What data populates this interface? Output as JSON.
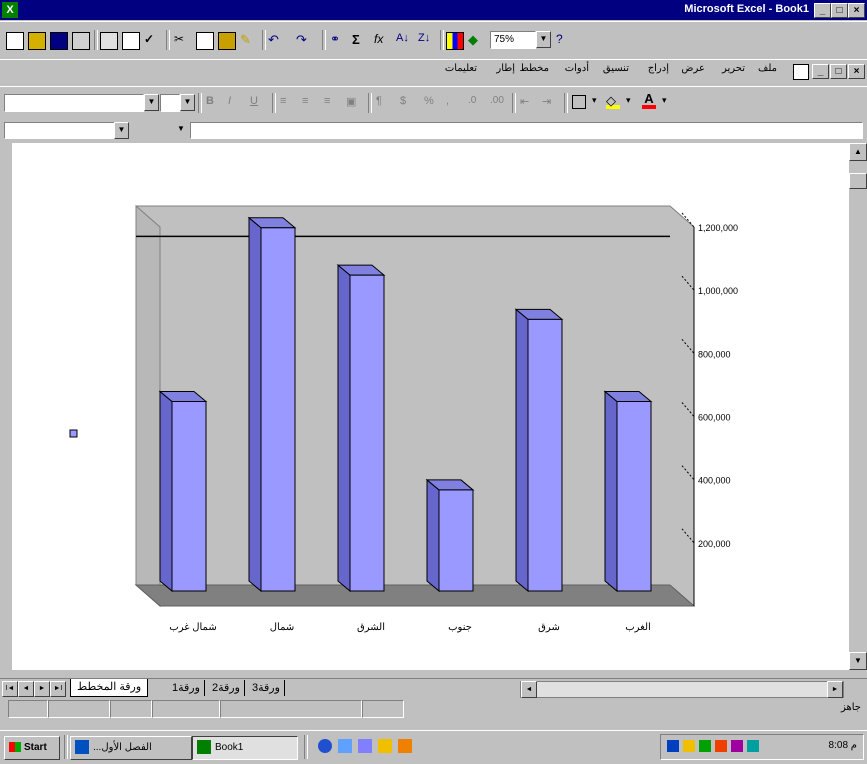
{
  "window": {
    "title": "Microsoft Excel - Book1",
    "min": "_",
    "max": "□",
    "close": "×"
  },
  "toolbar": {
    "zoom": "75%"
  },
  "menubar": {
    "items": [
      "ملف",
      "تحرير",
      "عرض",
      "إدراج",
      "تنسيق",
      "أدوات",
      "مخطط",
      "إطار",
      "تعليمات"
    ]
  },
  "chart_data": {
    "type": "bar",
    "title": "",
    "categories": [
      "شمال غرب",
      "شمال",
      "الشرق",
      "جنوب",
      "شرق",
      "الغرب"
    ],
    "series": [
      {
        "name": "",
        "values": [
          600000,
          1150000,
          1000000,
          320000,
          860000,
          600000
        ]
      }
    ],
    "ylim": [
      0,
      1200000
    ],
    "yticks": [
      "200,000",
      "400,000",
      "600,000",
      "800,000",
      "1,000,000",
      "1,200,000"
    ],
    "ylabel": "",
    "xlabel": "",
    "legend_position": "left",
    "grid": false,
    "color": "#9999ff"
  },
  "sheet_tabs": {
    "active": "ورقة المخطط",
    "others": [
      "ورقة1",
      "ورقة2",
      "ورقة3"
    ]
  },
  "status": {
    "nav_first": "I◄",
    "nav_prev": "◄",
    "nav_next": "►",
    "nav_last": "►I",
    "right_text": "جاهز"
  },
  "taskbar": {
    "start": "Start",
    "button1": "...الفصل الأول",
    "button2": "Book1",
    "clock": "8:08 م"
  }
}
